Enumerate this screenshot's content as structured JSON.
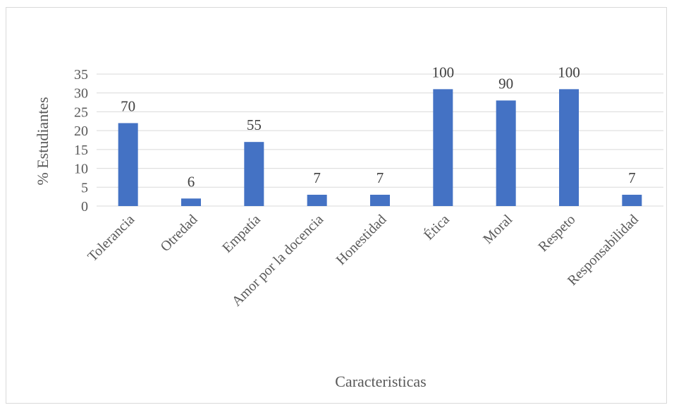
{
  "chart_data": {
    "type": "bar",
    "categories": [
      "Tolerancia",
      "Otredad",
      "Empatía",
      "Amor por la docencia",
      "Honestidad",
      "Ética",
      "Moral",
      "Respeto",
      "Responsabilidad"
    ],
    "series": [
      {
        "values": [
          22,
          2,
          17,
          3,
          3,
          31,
          28,
          31,
          3
        ],
        "data_labels": [
          "70",
          "6",
          "55",
          "7",
          "7",
          "100",
          "90",
          "100",
          "7"
        ],
        "color": "#4472c4"
      }
    ],
    "title": "",
    "xlabel": "Caracteristicas",
    "ylabel": "% Estudiantes",
    "ylim": [
      0,
      35
    ],
    "yticks": [
      0,
      5,
      10,
      15,
      20,
      25,
      30,
      35
    ],
    "grid": true,
    "legend": "none"
  }
}
